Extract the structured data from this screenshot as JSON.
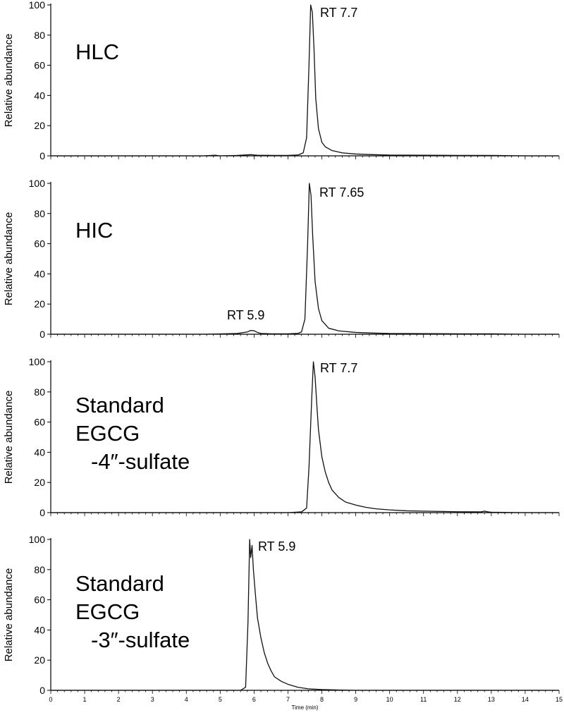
{
  "chart_data": {
    "type": "line",
    "xlim": [
      0,
      15
    ],
    "ylim": [
      0,
      100
    ],
    "x_ticks": [
      "0",
      "1",
      "2",
      "3",
      "4",
      "5",
      "6",
      "7",
      "8",
      "9",
      "10",
      "11",
      "12",
      "13",
      "14",
      "15"
    ],
    "y_ticks": [
      "0",
      "20",
      "40",
      "60",
      "80",
      "100"
    ],
    "xlabel": "Time (min)",
    "ylabel": "Relative abundance",
    "grid": false,
    "panels": [
      {
        "sample_label": [
          "HLC"
        ],
        "annotations": [
          {
            "text": "RT 7.7",
            "x": 7.7
          }
        ],
        "series": [
          {
            "x": [
              0,
              4.5,
              4.85,
              5.0,
              5.5,
              5.9,
              6.0,
              6.1,
              6.5,
              7.0,
              7.3,
              7.45,
              7.55,
              7.62,
              7.67,
              7.72,
              7.77,
              7.82,
              7.9,
              8.0,
              8.1,
              8.3,
              8.6,
              9.0,
              9.5,
              10.0,
              11.0,
              12.0,
              13.0,
              14.0,
              15.0
            ],
            "y": [
              0,
              0,
              0.4,
              0,
              0.3,
              0.8,
              0.6,
              0.4,
              0.3,
              0.3,
              0.6,
              2,
              12,
              60,
              100,
              95,
              70,
              38,
              18,
              9,
              6,
              3.5,
              2,
              1.2,
              0.8,
              0.5,
              0.4,
              0.3,
              0.3,
              0,
              0
            ]
          }
        ]
      },
      {
        "sample_label": [
          "HIC"
        ],
        "annotations": [
          {
            "text": "RT 7.65",
            "x": 7.65
          },
          {
            "text": "RT 5.9",
            "x": 5.9
          }
        ],
        "series": [
          {
            "x": [
              0,
              4.5,
              5.0,
              5.5,
              5.8,
              5.9,
              6.0,
              6.1,
              6.2,
              6.5,
              7.0,
              7.3,
              7.4,
              7.5,
              7.58,
              7.63,
              7.68,
              7.73,
              7.8,
              7.9,
              8.0,
              8.2,
              8.5,
              9.0,
              9.5,
              10.0,
              11.0,
              12.0,
              13.0,
              14.0,
              15.0
            ],
            "y": [
              0,
              0,
              0.2,
              0.5,
              1.5,
              2.5,
              2.3,
              1.2,
              0.5,
              0.3,
              0.3,
              0.6,
              1.5,
              10,
              60,
              100,
              92,
              65,
              35,
              17,
              9,
              4,
              2.2,
              1.2,
              0.8,
              0.5,
              0.4,
              0.3,
              0.3,
              0,
              0
            ]
          }
        ]
      },
      {
        "sample_label": [
          "Standard",
          "EGCG",
          "-4″-sulfate"
        ],
        "annotations": [
          {
            "text": "RT 7.7",
            "x": 7.7
          }
        ],
        "series": [
          {
            "x": [
              0,
              6.0,
              7.0,
              7.4,
              7.55,
              7.62,
              7.7,
              7.75,
              7.8,
              7.85,
              7.9,
              8.0,
              8.1,
              8.2,
              8.3,
              8.5,
              8.7,
              9.0,
              9.3,
              9.6,
              10.0,
              10.5,
              11.0,
              12.0,
              12.7,
              12.8,
              12.9,
              13.0,
              14.0,
              15.0
            ],
            "y": [
              0,
              0,
              0,
              0.5,
              3,
              30,
              75,
              100,
              90,
              72,
              55,
              37,
              27,
              20,
              15,
              10,
              7,
              5,
              3.5,
              2.5,
              1.8,
              1.2,
              1,
              0.6,
              0.5,
              1,
              0.5,
              0.3,
              0,
              0
            ]
          }
        ]
      },
      {
        "sample_label": [
          "Standard",
          "EGCG",
          "-3″-sulfate"
        ],
        "annotations": [
          {
            "text": "RT 5.9",
            "x": 5.9
          }
        ],
        "series": [
          {
            "x": [
              0,
              5.0,
              5.6,
              5.75,
              5.82,
              5.87,
              5.9,
              5.94,
              5.98,
              6.03,
              6.1,
              6.2,
              6.3,
              6.4,
              6.5,
              6.6,
              6.8,
              7.0,
              7.3,
              7.6,
              8.0,
              8.5,
              9.0,
              15.0
            ],
            "y": [
              0,
              0,
              0,
              2,
              45,
              100,
              88,
              96,
              80,
              66,
              48,
              35,
              25,
              18,
              13,
              9,
              6,
              4,
              2,
              1,
              0.5,
              0.2,
              0,
              0
            ]
          }
        ]
      }
    ]
  }
}
